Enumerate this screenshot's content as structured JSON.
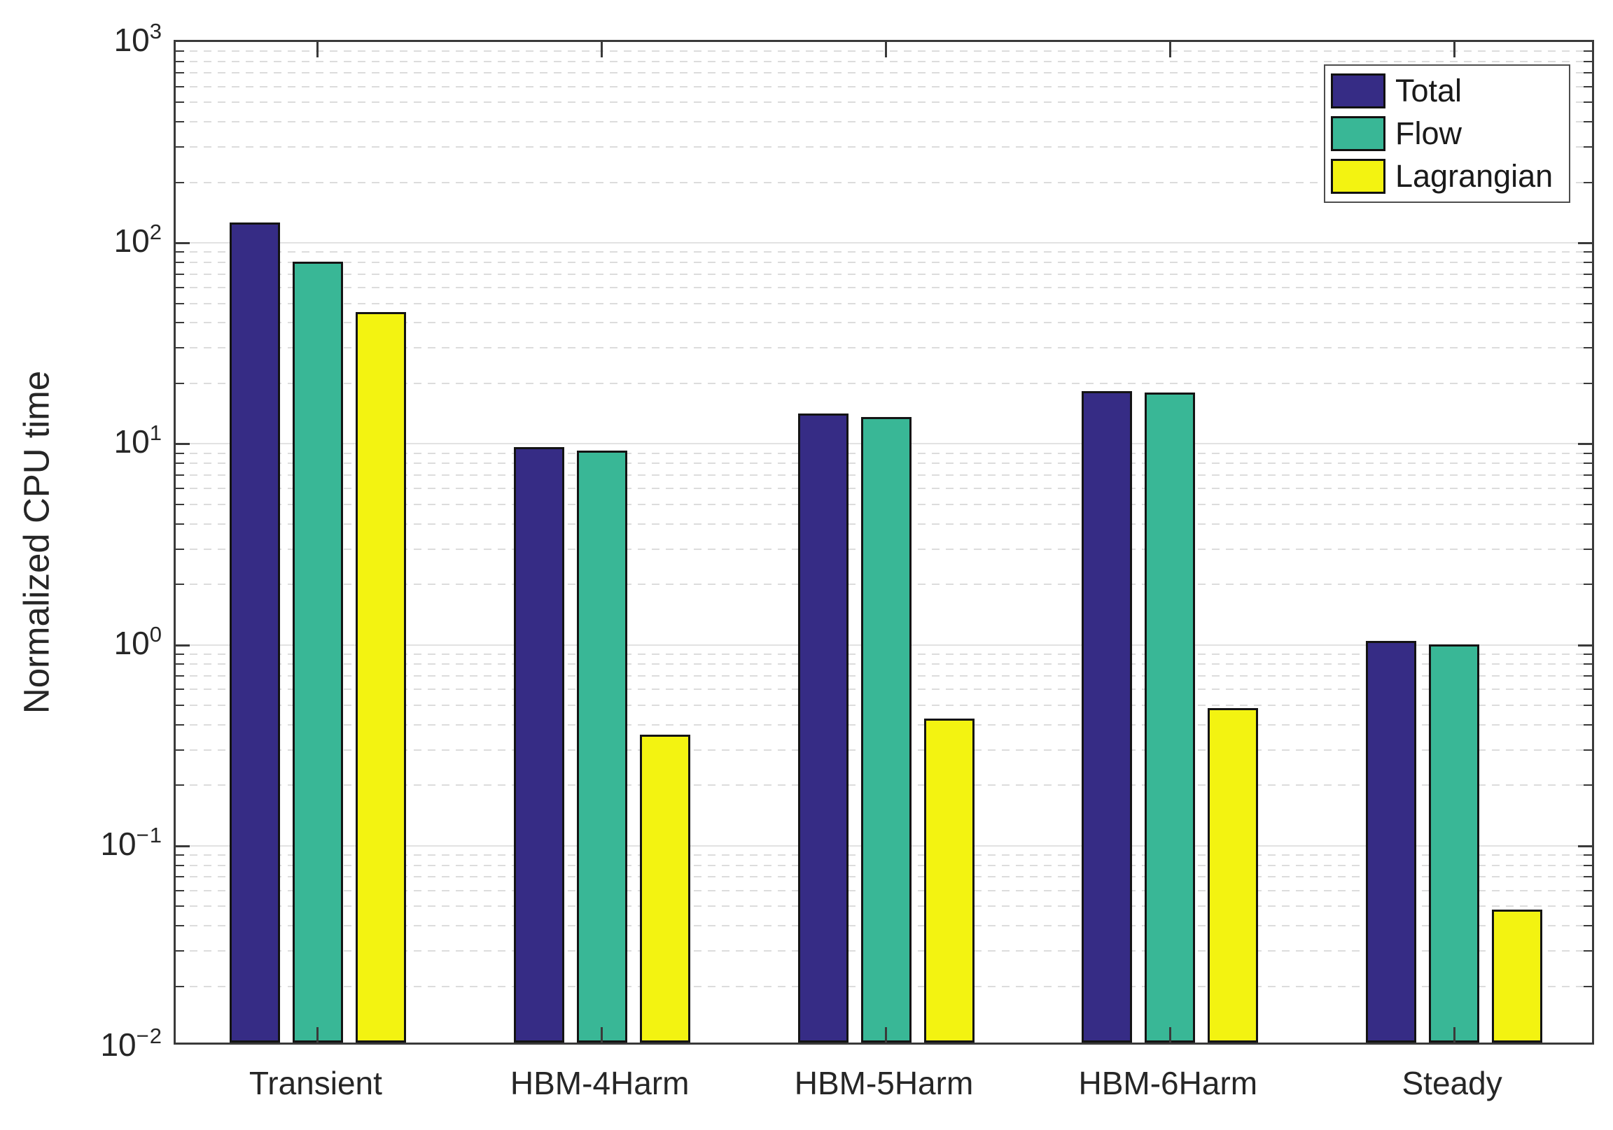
{
  "figure": {
    "bg": "#ffffff"
  },
  "axis": {
    "ylabel": "Normalized CPU time",
    "y_tick_base": "10",
    "y_tick_exponents": [
      3,
      2,
      1,
      0,
      -1,
      -2
    ],
    "frame_color": "#3a3a3a",
    "major_grid_color": "#e2e2e2",
    "minor_grid_color": "#dcdcdc"
  },
  "chart_data": {
    "type": "bar",
    "y_scale": "log",
    "ylim": [
      0.01,
      1000
    ],
    "ylabel": "Normalized CPU time",
    "xlabel": "",
    "grid": {
      "major": "solid",
      "minor": "dashed"
    },
    "legend_position": "top-right",
    "categories": [
      "Transient",
      "HBM-4Harm",
      "HBM-5Harm",
      "HBM-6Harm",
      "Steady"
    ],
    "series": [
      {
        "name": "Total",
        "color": "#362c85",
        "values": [
          120,
          9.2,
          13.5,
          17.5,
          1.0
        ]
      },
      {
        "name": "Flow",
        "color": "#39b796",
        "values": [
          77,
          8.8,
          13.0,
          17.2,
          0.96
        ]
      },
      {
        "name": "Lagrangian",
        "color": "#f3f311",
        "values": [
          43,
          0.34,
          0.41,
          0.46,
          0.046
        ]
      }
    ]
  }
}
